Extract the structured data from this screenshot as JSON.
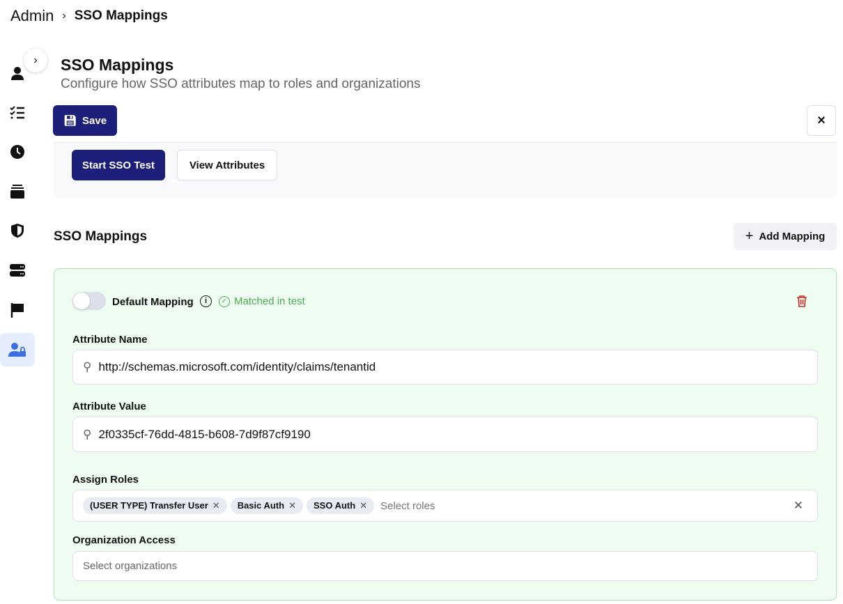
{
  "breadcrumb": {
    "root": "Admin",
    "current": "SSO Mappings"
  },
  "header": {
    "title": "SSO Mappings",
    "subtitle": "Configure how SSO attributes map to roles and organizations"
  },
  "toolbar": {
    "save": "Save",
    "close": "×"
  },
  "test": {
    "start": "Start SSO Test",
    "view": "View Attributes"
  },
  "section": {
    "title": "SSO Mappings",
    "add": "Add Mapping"
  },
  "mapping": {
    "default_label": "Default Mapping",
    "default_on": false,
    "matched": "Matched in test",
    "attr_name_label": "Attribute Name",
    "attr_name": "http://schemas.microsoft.com/identity/claims/tenantid",
    "attr_value_label": "Attribute Value",
    "attr_value": "2f0335cf-76dd-4815-b608-7d9f87cf9190",
    "roles_label": "Assign Roles",
    "roles": [
      "(USER TYPE) Transfer User",
      "Basic Auth",
      "SSO Auth"
    ],
    "roles_placeholder": "Select roles",
    "org_label": "Organization Access",
    "org_placeholder": "Select organizations"
  },
  "colors": {
    "primary": "#1c1f7a",
    "success": "#4caf50",
    "danger": "#c62828"
  }
}
